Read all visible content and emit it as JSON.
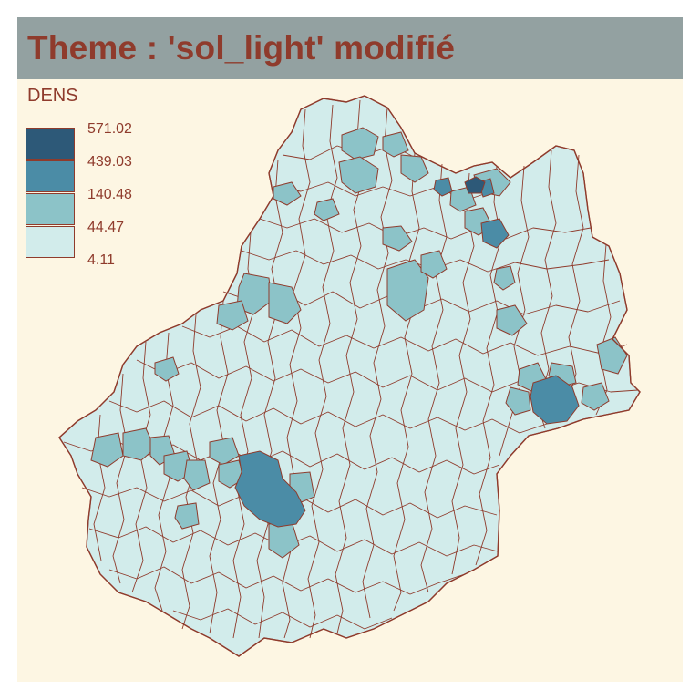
{
  "title": "Theme : 'sol_light' modifié",
  "legend": {
    "title": "DENS",
    "breaks": [
      "571.02",
      "439.03",
      "140.48",
      "44.47",
      "4.11"
    ],
    "colors": [
      "#2d5978",
      "#4b8ca6",
      "#8cc3c8",
      "#d2eceb"
    ]
  },
  "colors": {
    "background": "#fdf6e3",
    "title_bar": "#93a1a1",
    "text": "#8f3b2c",
    "borders": "#8f3b2c"
  },
  "map": {
    "variable": "DENS",
    "classes": [
      "4.11 – 44.47",
      "44.47 – 140.48",
      "140.48 – 439.03",
      "439.03 – 571.02"
    ]
  }
}
